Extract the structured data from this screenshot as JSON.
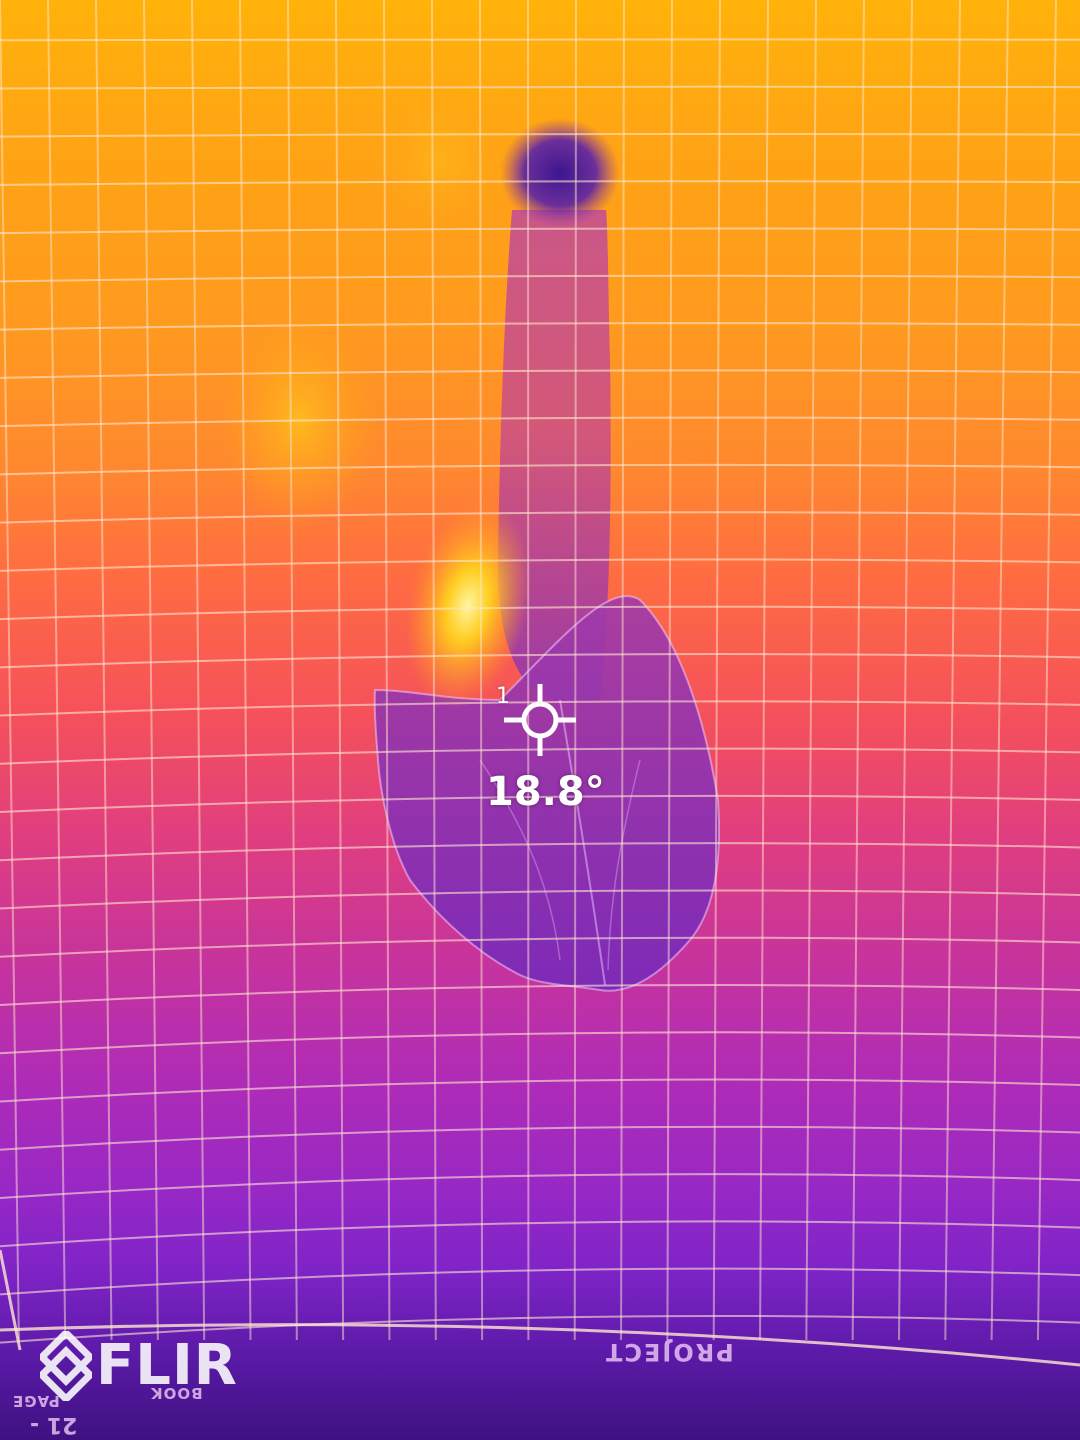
{
  "image": {
    "description_type": "thermal camera capture",
    "palette_colors": {
      "hot": "#ffd21e",
      "warm": "#ff8a2e",
      "mid": "#e03e80",
      "cool": "#9a28c4",
      "cold": "#3c1280",
      "grid_line": "#ffe8d0"
    }
  },
  "overlay": {
    "spot_meter": {
      "index": "1",
      "temperature": "18.8°",
      "icon": "crosshair-icon"
    },
    "brand": {
      "logo_text": "FLIR",
      "icon": "flir-diamond-icon"
    }
  },
  "printed_labels": {
    "project": "PROJECT",
    "book": "BOOK",
    "page": "PAGE",
    "number": "21 -"
  }
}
